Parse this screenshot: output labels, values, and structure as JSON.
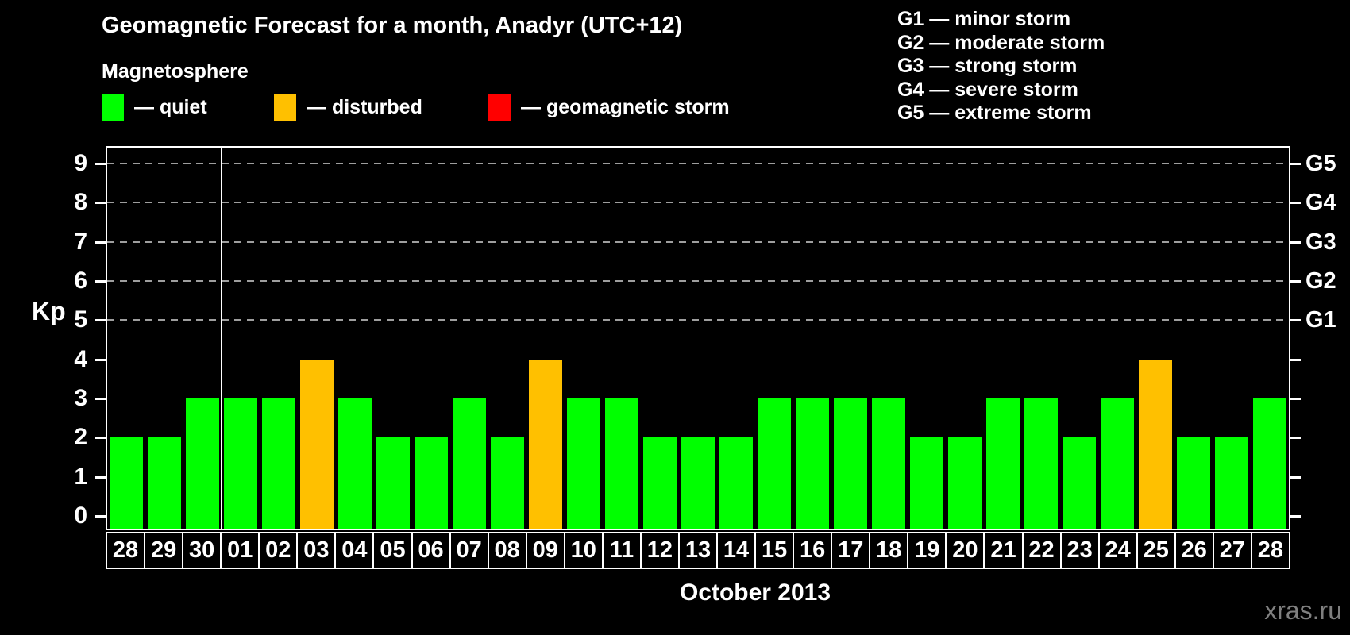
{
  "legend": {
    "heading": "Magnetosphere",
    "items": [
      {
        "label": "— quiet",
        "condition": "quiet"
      },
      {
        "label": "— disturbed",
        "condition": "disturbed"
      },
      {
        "label": "— geomagnetic storm",
        "condition": "storm"
      }
    ]
  },
  "colors": {
    "quiet": "#00ff00",
    "disturbed": "#ffc000",
    "storm": "#ff0000"
  },
  "storm_legend": [
    "G1 — minor storm",
    "G2 — moderate storm",
    "G3 — strong storm",
    "G4 — severe storm",
    "G5 — extreme storm"
  ],
  "watermark": "xras.ru",
  "chart_data": {
    "type": "bar",
    "title": "Geomagnetic Forecast for a month, Anadyr (UTC+12)",
    "ylabel": "Kp",
    "xlabel": "October 2013",
    "ylim": [
      0,
      9
    ],
    "yticks": [
      0,
      1,
      2,
      3,
      4,
      5,
      6,
      7,
      8,
      9
    ],
    "gridlines_at": [
      5,
      6,
      7,
      8,
      9
    ],
    "grid_style": "dashed",
    "legend_position": "top",
    "right_axis": [
      {
        "kp": 5,
        "label": "G1"
      },
      {
        "kp": 6,
        "label": "G2"
      },
      {
        "kp": 7,
        "label": "G3"
      },
      {
        "kp": 8,
        "label": "G4"
      },
      {
        "kp": 9,
        "label": "G5"
      }
    ],
    "month_separator_after_index": 2,
    "days": [
      {
        "date": "28",
        "kp": 2,
        "condition": "quiet"
      },
      {
        "date": "29",
        "kp": 2,
        "condition": "quiet"
      },
      {
        "date": "30",
        "kp": 3,
        "condition": "quiet"
      },
      {
        "date": "01",
        "kp": 3,
        "condition": "quiet"
      },
      {
        "date": "02",
        "kp": 3,
        "condition": "quiet"
      },
      {
        "date": "03",
        "kp": 4,
        "condition": "disturbed"
      },
      {
        "date": "04",
        "kp": 3,
        "condition": "quiet"
      },
      {
        "date": "05",
        "kp": 2,
        "condition": "quiet"
      },
      {
        "date": "06",
        "kp": 2,
        "condition": "quiet"
      },
      {
        "date": "07",
        "kp": 3,
        "condition": "quiet"
      },
      {
        "date": "08",
        "kp": 2,
        "condition": "quiet"
      },
      {
        "date": "09",
        "kp": 4,
        "condition": "disturbed"
      },
      {
        "date": "10",
        "kp": 3,
        "condition": "quiet"
      },
      {
        "date": "11",
        "kp": 3,
        "condition": "quiet"
      },
      {
        "date": "12",
        "kp": 2,
        "condition": "quiet"
      },
      {
        "date": "13",
        "kp": 2,
        "condition": "quiet"
      },
      {
        "date": "14",
        "kp": 2,
        "condition": "quiet"
      },
      {
        "date": "15",
        "kp": 3,
        "condition": "quiet"
      },
      {
        "date": "16",
        "kp": 3,
        "condition": "quiet"
      },
      {
        "date": "17",
        "kp": 3,
        "condition": "quiet"
      },
      {
        "date": "18",
        "kp": 3,
        "condition": "quiet"
      },
      {
        "date": "19",
        "kp": 2,
        "condition": "quiet"
      },
      {
        "date": "20",
        "kp": 2,
        "condition": "quiet"
      },
      {
        "date": "21",
        "kp": 3,
        "condition": "quiet"
      },
      {
        "date": "22",
        "kp": 3,
        "condition": "quiet"
      },
      {
        "date": "23",
        "kp": 2,
        "condition": "quiet"
      },
      {
        "date": "24",
        "kp": 3,
        "condition": "quiet"
      },
      {
        "date": "25",
        "kp": 4,
        "condition": "disturbed"
      },
      {
        "date": "26",
        "kp": 2,
        "condition": "quiet"
      },
      {
        "date": "27",
        "kp": 2,
        "condition": "quiet"
      },
      {
        "date": "28",
        "kp": 3,
        "condition": "quiet"
      }
    ]
  }
}
